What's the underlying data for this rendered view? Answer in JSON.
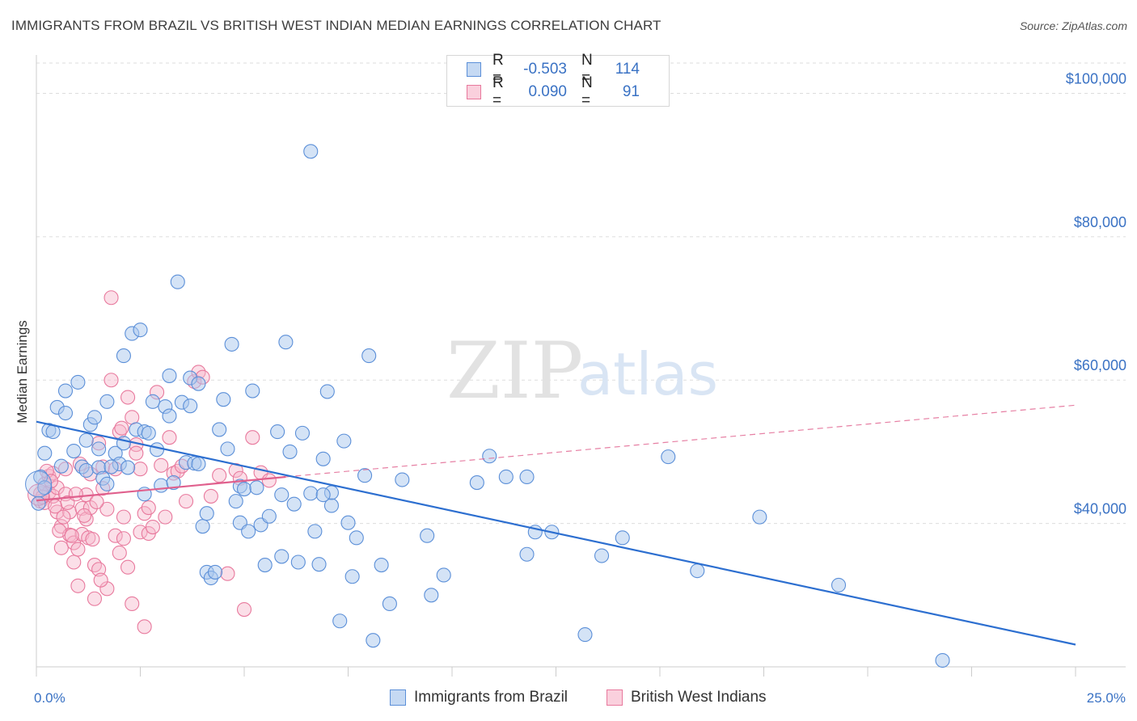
{
  "title": "IMMIGRANTS FROM BRAZIL VS BRITISH WEST INDIAN MEDIAN EARNINGS CORRELATION CHART",
  "source": "Source: ZipAtlas.com",
  "watermark": {
    "zip": "ZIP",
    "atlas": "atlas"
  },
  "legend": {
    "rows": [
      {
        "r_label": "R =",
        "r_value": "-0.503",
        "n_label": "N =",
        "n_value": "114"
      },
      {
        "r_label": "R =",
        "r_value": "0.090",
        "n_label": "N =",
        "n_value": "91"
      }
    ]
  },
  "colors": {
    "blue_fill": "#a9c7ee",
    "blue_stroke": "#5b8fd8",
    "blue_line": "#2d6fd0",
    "pink_fill": "#f6b9cc",
    "pink_stroke": "#e8799d",
    "pink_line": "#e0608d",
    "tick_text": "#3a72c4",
    "grid": "#dddddd"
  },
  "chart_data": {
    "type": "scatter",
    "xlabel": "",
    "ylabel": "Median Earnings",
    "xlim": [
      0,
      25
    ],
    "ylim": [
      20000,
      104000
    ],
    "x_ticks": [
      {
        "value": 0,
        "label": "0.0%"
      },
      {
        "value": 25,
        "label": "25.0%"
      }
    ],
    "y_ticks": [
      {
        "value": 40000,
        "label": "$40,000"
      },
      {
        "value": 60000,
        "label": "$60,000"
      },
      {
        "value": 80000,
        "label": "$80,000"
      },
      {
        "value": 100000,
        "label": "$100,000"
      }
    ],
    "grid": true,
    "series": [
      {
        "name": "Immigrants from Brazil",
        "color": "#a9c7ee",
        "trend": {
          "x": [
            0,
            25
          ],
          "y": [
            54200,
            23100
          ],
          "style": "solid"
        },
        "points": [
          [
            0.1,
            46500
          ],
          [
            0.2,
            49800
          ],
          [
            0.3,
            53000
          ],
          [
            0.4,
            52800
          ],
          [
            0.5,
            56200
          ],
          [
            0.6,
            48000
          ],
          [
            0.7,
            58500
          ],
          [
            0.7,
            55400
          ],
          [
            0.9,
            50100
          ],
          [
            1.0,
            59700
          ],
          [
            1.2,
            51600
          ],
          [
            1.1,
            47900
          ],
          [
            1.3,
            53800
          ],
          [
            1.2,
            47400
          ],
          [
            1.4,
            54800
          ],
          [
            1.5,
            47800
          ],
          [
            1.5,
            50400
          ],
          [
            1.6,
            46300
          ],
          [
            1.7,
            45500
          ],
          [
            1.7,
            57000
          ],
          [
            1.9,
            49800
          ],
          [
            2.0,
            48300
          ],
          [
            2.1,
            63400
          ],
          [
            2.1,
            51200
          ],
          [
            2.2,
            47800
          ],
          [
            2.3,
            66500
          ],
          [
            2.4,
            53100
          ],
          [
            2.5,
            67000
          ],
          [
            2.6,
            44100
          ],
          [
            2.6,
            52800
          ],
          [
            2.7,
            52600
          ],
          [
            2.8,
            57000
          ],
          [
            2.9,
            50300
          ],
          [
            3.0,
            45300
          ],
          [
            3.1,
            56300
          ],
          [
            3.2,
            60600
          ],
          [
            3.2,
            55000
          ],
          [
            3.3,
            45700
          ],
          [
            3.4,
            73700
          ],
          [
            3.5,
            56900
          ],
          [
            3.6,
            48500
          ],
          [
            3.7,
            60300
          ],
          [
            3.7,
            56400
          ],
          [
            3.8,
            48400
          ],
          [
            3.9,
            59500
          ],
          [
            4.0,
            39600
          ],
          [
            4.1,
            33200
          ],
          [
            4.2,
            32400
          ],
          [
            4.3,
            33200
          ],
          [
            4.1,
            41400
          ],
          [
            4.4,
            53100
          ],
          [
            4.5,
            57300
          ],
          [
            4.6,
            50400
          ],
          [
            4.8,
            43100
          ],
          [
            4.7,
            65000
          ],
          [
            4.9,
            45200
          ],
          [
            4.9,
            40100
          ],
          [
            5.0,
            44800
          ],
          [
            5.1,
            38900
          ],
          [
            5.2,
            58500
          ],
          [
            5.3,
            45000
          ],
          [
            5.4,
            39800
          ],
          [
            5.5,
            34200
          ],
          [
            5.6,
            41000
          ],
          [
            5.8,
            52800
          ],
          [
            5.9,
            35400
          ],
          [
            5.9,
            44000
          ],
          [
            6.0,
            65300
          ],
          [
            6.1,
            50000
          ],
          [
            6.2,
            42700
          ],
          [
            6.3,
            34600
          ],
          [
            6.4,
            52600
          ],
          [
            6.6,
            44200
          ],
          [
            6.6,
            91900
          ],
          [
            6.7,
            38900
          ],
          [
            6.8,
            34300
          ],
          [
            6.9,
            49000
          ],
          [
            7.0,
            58400
          ],
          [
            7.1,
            42500
          ],
          [
            7.3,
            26400
          ],
          [
            7.4,
            51500
          ],
          [
            7.5,
            40100
          ],
          [
            7.6,
            32600
          ],
          [
            7.7,
            38000
          ],
          [
            7.9,
            46700
          ],
          [
            8.0,
            63400
          ],
          [
            8.1,
            23700
          ],
          [
            8.3,
            34200
          ],
          [
            8.5,
            28800
          ],
          [
            8.8,
            46100
          ],
          [
            9.4,
            38300
          ],
          [
            9.5,
            30000
          ],
          [
            9.8,
            32800
          ],
          [
            10.6,
            45700
          ],
          [
            10.9,
            49400
          ],
          [
            11.3,
            46500
          ],
          [
            11.8,
            46500
          ],
          [
            11.8,
            35700
          ],
          [
            12.0,
            38800
          ],
          [
            12.4,
            38800
          ],
          [
            13.2,
            24500
          ],
          [
            13.6,
            35500
          ],
          [
            14.1,
            38000
          ],
          [
            15.2,
            49300
          ],
          [
            15.9,
            33400
          ],
          [
            17.4,
            40900
          ],
          [
            19.3,
            31400
          ],
          [
            21.8,
            20900
          ],
          [
            0.05,
            42800
          ],
          [
            0.2,
            45000
          ],
          [
            1.8,
            47900
          ],
          [
            3.9,
            48300
          ],
          [
            7.1,
            44300
          ],
          [
            6.9,
            44000
          ]
        ]
      },
      {
        "name": "British West Indians",
        "color": "#f6b9cc",
        "trend": {
          "x": [
            0,
            6
          ],
          "y": [
            43200,
            46500
          ],
          "style": "solid"
        },
        "trend_dashed": {
          "x": [
            6,
            25
          ],
          "y": [
            46500,
            56500
          ],
          "style": "dashed"
        },
        "points": [
          [
            0.1,
            44200
          ],
          [
            0.1,
            43100
          ],
          [
            0.2,
            45500
          ],
          [
            0.2,
            42900
          ],
          [
            0.3,
            46600
          ],
          [
            0.3,
            44300
          ],
          [
            0.4,
            47000
          ],
          [
            0.4,
            43800
          ],
          [
            0.5,
            45000
          ],
          [
            0.5,
            41600
          ],
          [
            0.6,
            39600
          ],
          [
            0.6,
            36600
          ],
          [
            0.7,
            47600
          ],
          [
            0.7,
            44100
          ],
          [
            0.8,
            38400
          ],
          [
            0.8,
            41600
          ],
          [
            0.9,
            37300
          ],
          [
            0.9,
            34600
          ],
          [
            1.0,
            36400
          ],
          [
            1.0,
            31300
          ],
          [
            1.1,
            38500
          ],
          [
            1.1,
            42100
          ],
          [
            1.2,
            44000
          ],
          [
            1.2,
            40600
          ],
          [
            1.3,
            46900
          ],
          [
            1.3,
            42200
          ],
          [
            1.4,
            29500
          ],
          [
            1.4,
            34200
          ],
          [
            1.5,
            51200
          ],
          [
            1.5,
            33600
          ],
          [
            1.6,
            47900
          ],
          [
            1.6,
            44900
          ],
          [
            1.7,
            30900
          ],
          [
            1.7,
            42000
          ],
          [
            1.8,
            71500
          ],
          [
            1.8,
            60000
          ],
          [
            1.9,
            38300
          ],
          [
            1.9,
            47600
          ],
          [
            2.0,
            52800
          ],
          [
            2.0,
            35900
          ],
          [
            2.1,
            37900
          ],
          [
            2.1,
            40900
          ],
          [
            2.2,
            33900
          ],
          [
            2.2,
            57600
          ],
          [
            2.3,
            54800
          ],
          [
            2.3,
            28800
          ],
          [
            2.4,
            51000
          ],
          [
            2.4,
            49800
          ],
          [
            2.5,
            47600
          ],
          [
            2.5,
            38800
          ],
          [
            2.6,
            25600
          ],
          [
            2.6,
            41400
          ],
          [
            2.7,
            42200
          ],
          [
            2.7,
            38600
          ],
          [
            2.8,
            39500
          ],
          [
            2.9,
            58300
          ],
          [
            3.0,
            48100
          ],
          [
            3.1,
            40900
          ],
          [
            3.2,
            52000
          ],
          [
            3.3,
            47000
          ],
          [
            3.4,
            47300
          ],
          [
            3.5,
            48000
          ],
          [
            3.6,
            43100
          ],
          [
            3.8,
            59800
          ],
          [
            3.9,
            61100
          ],
          [
            4.0,
            60400
          ],
          [
            4.2,
            43800
          ],
          [
            4.4,
            46700
          ],
          [
            4.6,
            33000
          ],
          [
            4.8,
            47400
          ],
          [
            4.9,
            46300
          ],
          [
            5.0,
            28000
          ],
          [
            5.2,
            52000
          ],
          [
            5.4,
            47100
          ],
          [
            5.6,
            46000
          ],
          [
            0.15,
            43700
          ],
          [
            0.25,
            47300
          ],
          [
            0.35,
            45900
          ],
          [
            0.45,
            42400
          ],
          [
            0.55,
            39000
          ],
          [
            0.65,
            40900
          ],
          [
            0.75,
            42900
          ],
          [
            0.85,
            38300
          ],
          [
            0.95,
            44100
          ],
          [
            1.05,
            48300
          ],
          [
            1.15,
            41100
          ],
          [
            1.25,
            38000
          ],
          [
            1.35,
            37800
          ],
          [
            1.45,
            43000
          ],
          [
            1.55,
            32100
          ],
          [
            2.05,
            53300
          ]
        ]
      }
    ]
  },
  "bottom_legend": {
    "items": [
      {
        "label": "Immigrants from Brazil"
      },
      {
        "label": "British West Indians"
      }
    ]
  }
}
